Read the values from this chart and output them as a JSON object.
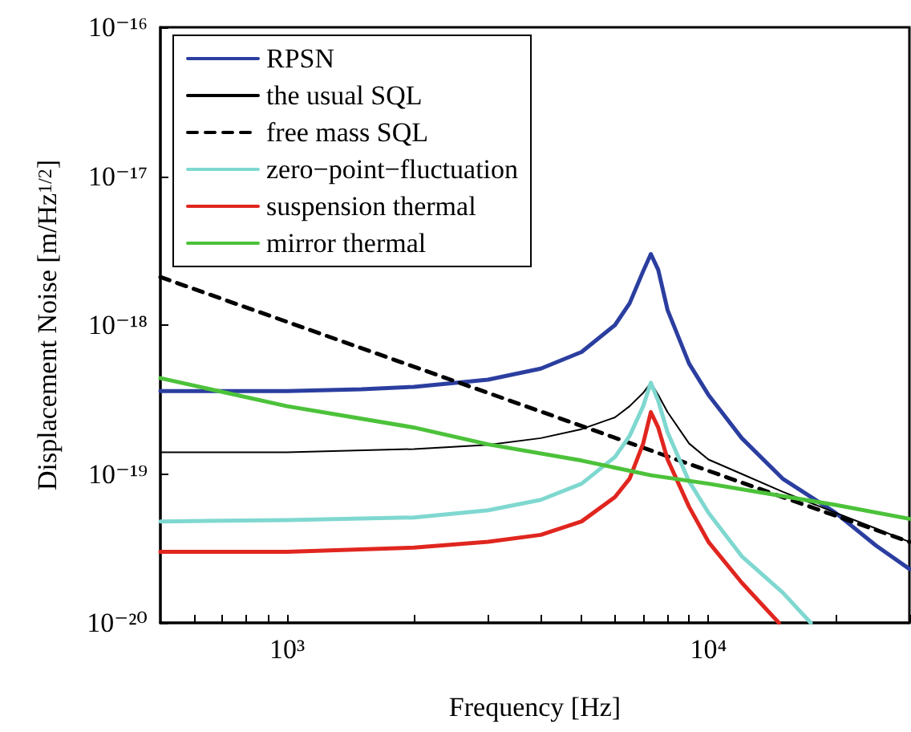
{
  "chart_data": {
    "type": "line",
    "xlabel": "Frequency [Hz]",
    "ylabel": "Displacement Noise [m/Hz$^{1/2}$]",
    "log": "xy",
    "grid": false,
    "legend": "top left",
    "marker": "none",
    "xlim": [
      500,
      30000
    ],
    "ylim": [
      1e-20,
      1e-16
    ],
    "xticks": [
      {
        "value": 600,
        "label": null
      },
      {
        "value": 700,
        "label": null
      },
      {
        "value": 800,
        "label": null
      },
      {
        "value": 900,
        "label": null
      },
      {
        "value": 1000,
        "label": "10³"
      },
      {
        "value": 2000,
        "label": null
      },
      {
        "value": 3000,
        "label": null
      },
      {
        "value": 4000,
        "label": null
      },
      {
        "value": 5000,
        "label": null
      },
      {
        "value": 6000,
        "label": null
      },
      {
        "value": 7000,
        "label": null
      },
      {
        "value": 8000,
        "label": null
      },
      {
        "value": 9000,
        "label": null
      },
      {
        "value": 10000,
        "label": "10⁴"
      },
      {
        "value": 20000,
        "label": null
      },
      {
        "value": 30000,
        "label": null
      }
    ],
    "yticks": [
      {
        "value": 1e-20,
        "label": "10⁻²⁰"
      },
      {
        "value": 1e-19,
        "label": "10⁻¹⁹"
      },
      {
        "value": 1e-18,
        "label": "10⁻¹⁸"
      },
      {
        "value": 1e-17,
        "label": "10⁻¹⁷"
      },
      {
        "value": 1e-16,
        "label": "10⁻¹⁶"
      }
    ],
    "series": [
      {
        "name": "RPSN",
        "color": "#2b3ea0",
        "line_style": "solid",
        "x": [
          500,
          1000,
          1500,
          2000,
          3000,
          4000,
          5000,
          6000,
          6500,
          7000,
          7300,
          7600,
          8000,
          9000,
          10000,
          12000,
          15000,
          20000,
          25000,
          30000
        ],
        "values": [
          3.6e-19,
          3.6e-19,
          3.7e-19,
          3.85e-19,
          4.3e-19,
          5.1e-19,
          6.6e-19,
          1e-18,
          1.4e-18,
          2.3e-18,
          3e-18,
          2.35e-18,
          1.26e-18,
          5.5e-19,
          3.4e-19,
          1.74e-19,
          9.3e-20,
          5.5e-20,
          3.3e-20,
          2.3e-20
        ]
      },
      {
        "name": "the usual SQL",
        "color": "#000000",
        "line_style": "solid",
        "x": [
          500,
          1000,
          2000,
          3000,
          4000,
          5000,
          6000,
          6500,
          7000,
          7300,
          7600,
          8000,
          9000,
          10000,
          12000,
          15000,
          20000,
          25000,
          30000
        ],
        "values": [
          1.4e-19,
          1.4e-19,
          1.47e-19,
          1.57e-19,
          1.74e-19,
          2e-19,
          2.4e-19,
          2.85e-19,
          3.5e-19,
          4.1e-19,
          3.4e-19,
          2.6e-19,
          1.6e-19,
          1.25e-19,
          1e-19,
          7.6e-20,
          5.5e-20,
          4.3e-20,
          3.5e-20
        ]
      },
      {
        "name": "free mass SQL",
        "color": "#000000",
        "line_style": "dashed",
        "x": [
          500,
          1000,
          3000,
          10000,
          30000
        ],
        "values": [
          2.1e-18,
          1.05e-18,
          3.5e-19,
          1.05e-19,
          3.5e-20
        ]
      },
      {
        "name": "zero−point−fluctuation",
        "color": "#7fd8d0",
        "line_style": "solid",
        "x": [
          500,
          1000,
          2000,
          3000,
          4000,
          5000,
          6000,
          6500,
          7000,
          7300,
          7600,
          8000,
          9000,
          10000,
          12000,
          15000,
          17500
        ],
        "values": [
          4.8e-20,
          4.9e-20,
          5.1e-20,
          5.7e-20,
          6.7e-20,
          8.6e-20,
          1.3e-19,
          1.8e-19,
          2.85e-19,
          4.1e-19,
          3.1e-19,
          1.9e-19,
          8.9e-20,
          5.5e-20,
          2.8e-20,
          1.6e-20,
          1e-20
        ]
      },
      {
        "name": "suspension thermal",
        "color": "#e0261f",
        "line_style": "solid",
        "x": [
          500,
          1000,
          2000,
          3000,
          4000,
          5000,
          6000,
          6500,
          7000,
          7300,
          7600,
          8000,
          9000,
          10000,
          12000,
          14700
        ],
        "values": [
          3e-20,
          3e-20,
          3.2e-20,
          3.5e-20,
          3.9e-20,
          4.8e-20,
          7e-20,
          9.3e-20,
          1.6e-19,
          2.6e-19,
          2.05e-19,
          1.25e-19,
          6e-20,
          3.5e-20,
          1.86e-20,
          1e-20
        ]
      },
      {
        "name": "mirror thermal",
        "color": "#4cc23a",
        "line_style": "solid",
        "x": [
          500,
          1000,
          2000,
          3000,
          5000,
          7300,
          10000,
          20000,
          30000
        ],
        "values": [
          4.4e-19,
          2.85e-19,
          2.05e-19,
          1.58e-19,
          1.23e-19,
          9.8e-20,
          8.6e-20,
          6.2e-20,
          5e-20
        ]
      }
    ]
  }
}
